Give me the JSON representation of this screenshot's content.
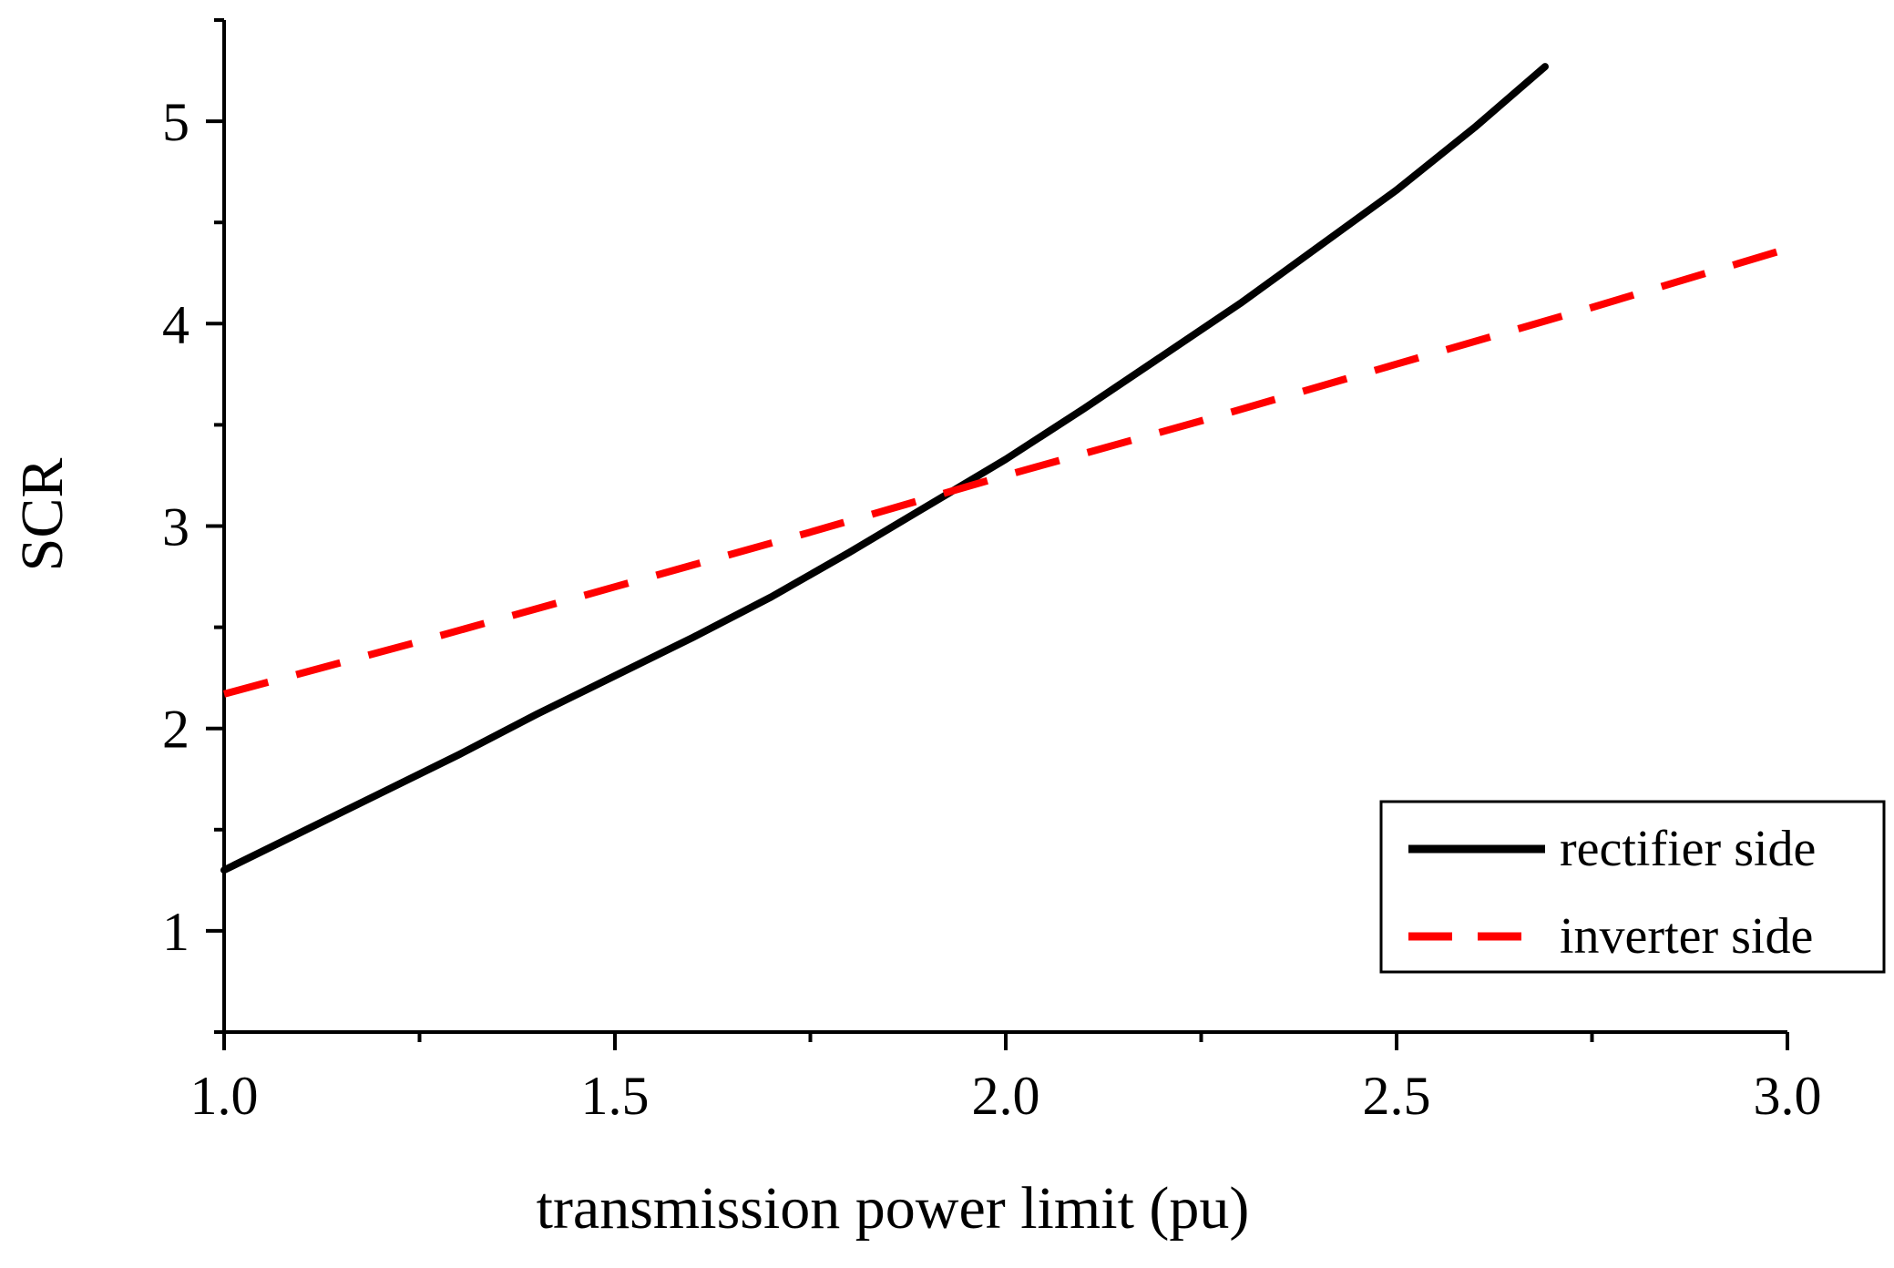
{
  "chart_data": {
    "type": "line",
    "title": "",
    "xlabel": "transmission power limit (pu)",
    "ylabel": "SCR",
    "xlim": [
      1.0,
      3.0
    ],
    "ylim": [
      0.5,
      5.5
    ],
    "x_ticks": [
      1.0,
      1.5,
      2.0,
      2.5,
      3.0
    ],
    "x_tick_labels": [
      "1.0",
      "1.5",
      "2.0",
      "2.5",
      "3.0"
    ],
    "x_minor_ticks": [
      1.25,
      1.75,
      2.25,
      2.75
    ],
    "y_ticks": [
      1,
      2,
      3,
      4,
      5
    ],
    "y_tick_labels": [
      "1",
      "2",
      "3",
      "4",
      "5"
    ],
    "y_minor_ticks": [
      0.5,
      1.5,
      2.5,
      3.5,
      4.5,
      5.5
    ],
    "grid": false,
    "legend_position": "bottom-right",
    "series": [
      {
        "name": "rectifier side",
        "color": "#000000",
        "style": "solid",
        "x": [
          1.0,
          1.1,
          1.2,
          1.3,
          1.4,
          1.5,
          1.6,
          1.7,
          1.8,
          1.9,
          2.0,
          2.1,
          2.2,
          2.3,
          2.4,
          2.5,
          2.6,
          2.69
        ],
        "y": [
          1.3,
          1.49,
          1.68,
          1.87,
          2.07,
          2.26,
          2.45,
          2.65,
          2.87,
          3.1,
          3.33,
          3.58,
          3.84,
          4.1,
          4.38,
          4.66,
          4.97,
          5.27
        ]
      },
      {
        "name": "inverter side",
        "color": "#ff0000",
        "style": "dashed",
        "x": [
          1.0,
          1.25,
          1.5,
          1.75,
          2.0,
          2.25,
          2.5,
          2.75,
          3.0
        ],
        "y": [
          2.17,
          2.43,
          2.7,
          2.97,
          3.25,
          3.52,
          3.8,
          4.08,
          4.37
        ]
      }
    ]
  }
}
